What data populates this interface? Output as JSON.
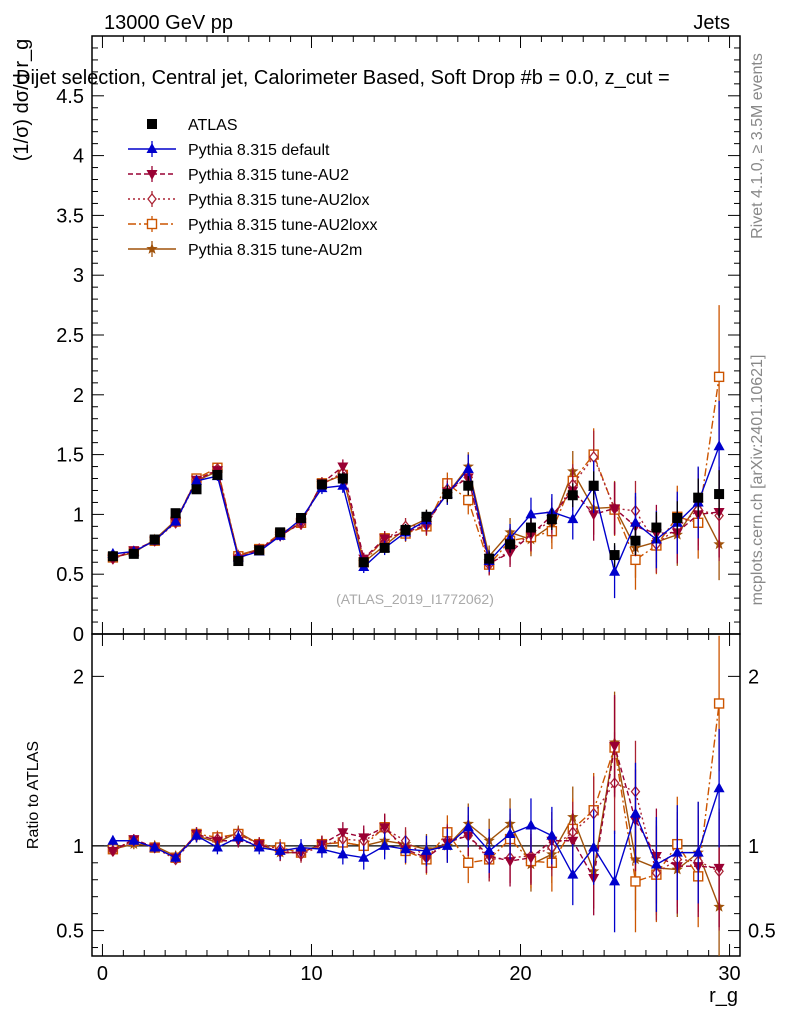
{
  "header": {
    "left": "13000 GeV pp",
    "right": "Jets"
  },
  "side_labels": {
    "rivet": "Rivet 4.1.0, ≥ 3.5M events",
    "mcplots": "mcplots.cern.ch [arXiv:2401.10621]"
  },
  "chart_data": [
    {
      "type": "line",
      "panel": "main",
      "title": "Dijet selection, Central jet, Calorimeter Based, Soft Drop #b = 0.0, z_cut =",
      "xlabel": "r_g",
      "ylabel": "(1/σ) dσ/d r_g",
      "xlim": [
        -0.5,
        30.5
      ],
      "ylim": [
        0,
        5
      ],
      "yticks": [
        "0",
        "0.5",
        "1",
        "1.5",
        "2",
        "2.5",
        "3",
        "3.5",
        "4",
        "4.5"
      ],
      "watermark": "(ATLAS_2019_I1772062)",
      "x": [
        0.5,
        1.5,
        2.5,
        3.5,
        4.5,
        5.5,
        6.5,
        7.5,
        8.5,
        9.5,
        10.5,
        11.5,
        12.5,
        13.5,
        14.5,
        15.5,
        16.5,
        17.5,
        18.5,
        19.5,
        20.5,
        21.5,
        22.5,
        23.5,
        24.5,
        25.5,
        26.5,
        27.5,
        28.5,
        29.5
      ],
      "series": [
        {
          "name": "ATLAS",
          "color": "#000000",
          "marker": "square",
          "line": "none",
          "values": [
            0.65,
            0.67,
            0.79,
            1.01,
            1.21,
            1.33,
            0.61,
            0.7,
            0.85,
            0.97,
            1.25,
            1.3,
            0.6,
            0.72,
            0.87,
            0.98,
            1.17,
            1.24,
            0.63,
            0.75,
            0.89,
            0.96,
            1.16,
            1.24,
            0.66,
            0.78,
            0.89,
            0.97,
            1.14,
            1.17
          ],
          "errors": [
            0.02,
            0.02,
            0.02,
            0.03,
            0.03,
            0.03,
            0.02,
            0.02,
            0.03,
            0.03,
            0.04,
            0.05,
            0.03,
            0.04,
            0.05,
            0.06,
            0.07,
            0.08,
            0.06,
            0.07,
            0.08,
            0.09,
            0.1,
            0.12,
            0.1,
            0.12,
            0.13,
            0.14,
            0.16,
            0.2
          ]
        },
        {
          "name": "Pythia 8.315 default",
          "color": "#0000cc",
          "marker": "triangle-up",
          "line": "solid",
          "values": [
            0.67,
            0.69,
            0.78,
            0.94,
            1.28,
            1.32,
            0.64,
            0.69,
            0.82,
            0.96,
            1.22,
            1.24,
            0.56,
            0.72,
            0.85,
            0.95,
            1.17,
            1.38,
            0.61,
            0.8,
            1.0,
            1.02,
            0.96,
            1.23,
            0.52,
            0.93,
            0.79,
            0.93,
            1.1,
            1.57
          ],
          "errors": [
            0.03,
            0.03,
            0.03,
            0.03,
            0.04,
            0.04,
            0.03,
            0.03,
            0.04,
            0.05,
            0.05,
            0.06,
            0.05,
            0.06,
            0.07,
            0.08,
            0.09,
            0.12,
            0.09,
            0.12,
            0.14,
            0.15,
            0.17,
            0.22,
            0.22,
            0.25,
            0.24,
            0.26,
            0.3,
            0.38
          ]
        },
        {
          "name": "Pythia 8.315 tune-AU2",
          "color": "#990033",
          "marker": "triangle-down",
          "line": "dashed",
          "values": [
            0.63,
            0.7,
            0.78,
            0.94,
            1.29,
            1.37,
            0.63,
            0.71,
            0.82,
            0.93,
            1.26,
            1.4,
            0.63,
            0.8,
            0.85,
            0.91,
            1.19,
            1.31,
            0.59,
            0.68,
            0.83,
            0.99,
            1.2,
            1.0,
            1.05,
            0.9,
            0.84,
            0.85,
            1.0,
            1.02
          ],
          "errors": [
            0.03,
            0.03,
            0.03,
            0.03,
            0.04,
            0.04,
            0.03,
            0.03,
            0.04,
            0.05,
            0.05,
            0.06,
            0.05,
            0.06,
            0.07,
            0.08,
            0.09,
            0.12,
            0.09,
            0.12,
            0.14,
            0.15,
            0.17,
            0.22,
            0.22,
            0.25,
            0.24,
            0.26,
            0.3,
            0.38
          ]
        },
        {
          "name": "Pythia 8.315 tune-AU2lox",
          "color": "#aa2233",
          "marker": "diamond-open",
          "line": "dotted",
          "values": [
            0.63,
            0.69,
            0.78,
            0.93,
            1.28,
            1.38,
            0.65,
            0.71,
            0.83,
            0.92,
            1.25,
            1.35,
            0.62,
            0.79,
            0.9,
            0.91,
            1.21,
            1.31,
            0.58,
            0.7,
            0.84,
            0.95,
            1.25,
            1.48,
            1.05,
            1.03,
            0.75,
            0.89,
            1.04,
            0.99
          ],
          "errors": [
            0.03,
            0.03,
            0.03,
            0.03,
            0.04,
            0.04,
            0.03,
            0.03,
            0.04,
            0.05,
            0.05,
            0.06,
            0.05,
            0.06,
            0.07,
            0.08,
            0.09,
            0.12,
            0.09,
            0.12,
            0.14,
            0.15,
            0.17,
            0.22,
            0.22,
            0.25,
            0.24,
            0.26,
            0.3,
            0.38
          ]
        },
        {
          "name": "Pythia 8.315 tune-AU2loxx",
          "color": "#cc5500",
          "marker": "square-open",
          "line": "dashdot",
          "values": [
            0.64,
            0.69,
            0.78,
            0.94,
            1.3,
            1.39,
            0.65,
            0.71,
            0.84,
            0.93,
            1.26,
            1.33,
            0.6,
            0.8,
            0.84,
            0.9,
            1.26,
            1.12,
            0.58,
            0.78,
            0.81,
            0.86,
            1.28,
            1.5,
            1.04,
            0.62,
            0.74,
            0.98,
            0.93,
            2.15
          ],
          "errors": [
            0.03,
            0.03,
            0.03,
            0.03,
            0.04,
            0.04,
            0.03,
            0.03,
            0.04,
            0.05,
            0.05,
            0.06,
            0.05,
            0.06,
            0.07,
            0.08,
            0.09,
            0.12,
            0.09,
            0.12,
            0.14,
            0.15,
            0.17,
            0.22,
            0.22,
            0.25,
            0.24,
            0.26,
            0.3,
            0.6
          ]
        },
        {
          "name": "Pythia 8.315 tune-AU2m",
          "color": "#a0520a",
          "marker": "star",
          "line": "solid",
          "values": [
            0.64,
            0.68,
            0.79,
            0.95,
            1.28,
            1.36,
            0.66,
            0.71,
            0.82,
            0.93,
            1.26,
            1.33,
            0.6,
            0.74,
            0.88,
            0.96,
            1.17,
            1.4,
            0.65,
            0.85,
            0.79,
            0.91,
            1.36,
            1.05,
            1.06,
            0.72,
            0.77,
            0.83,
            1.09,
            0.75
          ],
          "errors": [
            0.03,
            0.03,
            0.03,
            0.03,
            0.04,
            0.04,
            0.03,
            0.03,
            0.04,
            0.05,
            0.05,
            0.06,
            0.05,
            0.06,
            0.07,
            0.08,
            0.09,
            0.12,
            0.09,
            0.12,
            0.14,
            0.15,
            0.17,
            0.22,
            0.22,
            0.25,
            0.24,
            0.26,
            0.3,
            0.3
          ]
        }
      ]
    },
    {
      "type": "line",
      "panel": "ratio",
      "xlabel": "r_g",
      "ylabel": "Ratio to ATLAS",
      "xlim": [
        -0.5,
        30.5
      ],
      "ylim": [
        0.35,
        2.25
      ],
      "yticks": [
        "0.5",
        "1",
        "2"
      ],
      "xticks": [
        "0",
        "10",
        "20",
        "30"
      ],
      "x": [
        0.5,
        1.5,
        2.5,
        3.5,
        4.5,
        5.5,
        6.5,
        7.5,
        8.5,
        9.5,
        10.5,
        11.5,
        12.5,
        13.5,
        14.5,
        15.5,
        16.5,
        17.5,
        18.5,
        19.5,
        20.5,
        21.5,
        22.5,
        23.5,
        24.5,
        25.5,
        26.5,
        27.5,
        28.5,
        29.5
      ],
      "series": [
        {
          "name": "Pythia 8.315 default",
          "values": [
            1.03,
            1.03,
            0.99,
            0.93,
            1.06,
            0.99,
            1.05,
            0.99,
            0.97,
            0.99,
            0.98,
            0.95,
            0.93,
            1.0,
            0.98,
            0.97,
            1.0,
            1.11,
            0.97,
            1.07,
            1.12,
            1.06,
            0.83,
            0.99,
            0.79,
            1.19,
            0.89,
            0.96,
            0.96,
            1.34
          ],
          "errors": [
            0.03,
            0.03,
            0.03,
            0.03,
            0.04,
            0.04,
            0.04,
            0.04,
            0.05,
            0.05,
            0.05,
            0.06,
            0.07,
            0.08,
            0.08,
            0.09,
            0.1,
            0.12,
            0.13,
            0.15,
            0.16,
            0.17,
            0.18,
            0.22,
            0.3,
            0.3,
            0.28,
            0.28,
            0.3,
            0.35
          ]
        },
        {
          "name": "Pythia 8.315 tune-AU2",
          "values": [
            0.97,
            1.04,
            0.99,
            0.93,
            1.07,
            1.03,
            1.03,
            1.01,
            0.96,
            0.96,
            1.01,
            1.08,
            1.05,
            1.11,
            0.98,
            0.93,
            1.02,
            1.06,
            0.94,
            0.91,
            0.93,
            1.03,
            1.03,
            0.81,
            1.59,
            1.15,
            0.94,
            0.88,
            0.88,
            0.87
          ],
          "errors": [
            0.03,
            0.03,
            0.03,
            0.03,
            0.04,
            0.04,
            0.04,
            0.04,
            0.05,
            0.05,
            0.05,
            0.06,
            0.07,
            0.08,
            0.08,
            0.09,
            0.1,
            0.12,
            0.13,
            0.15,
            0.16,
            0.17,
            0.18,
            0.22,
            0.3,
            0.3,
            0.28,
            0.28,
            0.3,
            0.35
          ]
        },
        {
          "name": "Pythia 8.315 tune-AU2lox",
          "values": [
            0.97,
            1.03,
            0.99,
            0.92,
            1.06,
            1.04,
            1.07,
            1.01,
            0.98,
            0.95,
            1.0,
            1.04,
            1.03,
            1.1,
            1.03,
            0.93,
            1.03,
            1.06,
            0.92,
            0.93,
            0.94,
            0.99,
            1.08,
            1.19,
            1.37,
            1.32,
            0.84,
            0.92,
            0.91,
            0.85
          ],
          "errors": [
            0.03,
            0.03,
            0.03,
            0.03,
            0.04,
            0.04,
            0.04,
            0.04,
            0.05,
            0.05,
            0.05,
            0.06,
            0.07,
            0.08,
            0.08,
            0.09,
            0.1,
            0.12,
            0.13,
            0.15,
            0.16,
            0.17,
            0.18,
            0.22,
            0.3,
            0.3,
            0.28,
            0.28,
            0.3,
            0.35
          ]
        },
        {
          "name": "Pythia 8.315 tune-AU2loxx",
          "values": [
            0.98,
            1.03,
            0.99,
            0.93,
            1.07,
            1.05,
            1.07,
            1.01,
            0.99,
            0.96,
            1.01,
            1.02,
            1.0,
            1.11,
            0.97,
            0.92,
            1.08,
            0.9,
            0.92,
            1.04,
            0.91,
            0.9,
            1.1,
            1.21,
            1.58,
            0.79,
            0.83,
            1.01,
            0.82,
            1.84
          ],
          "errors": [
            0.03,
            0.03,
            0.03,
            0.03,
            0.04,
            0.04,
            0.04,
            0.04,
            0.05,
            0.05,
            0.05,
            0.06,
            0.07,
            0.08,
            0.08,
            0.09,
            0.1,
            0.12,
            0.13,
            0.15,
            0.16,
            0.17,
            0.18,
            0.22,
            0.3,
            0.3,
            0.28,
            0.28,
            0.3,
            0.4
          ]
        },
        {
          "name": "Pythia 8.315 tune-AU2m",
          "values": [
            0.98,
            1.01,
            1.0,
            0.94,
            1.06,
            1.02,
            1.08,
            1.01,
            0.96,
            0.96,
            1.01,
            1.02,
            1.0,
            1.03,
            1.01,
            0.98,
            1.0,
            1.13,
            1.03,
            1.13,
            0.89,
            0.95,
            1.17,
            0.85,
            1.61,
            0.92,
            0.87,
            0.86,
            0.96,
            0.64
          ],
          "errors": [
            0.03,
            0.03,
            0.03,
            0.03,
            0.04,
            0.04,
            0.04,
            0.04,
            0.05,
            0.05,
            0.05,
            0.06,
            0.07,
            0.08,
            0.08,
            0.09,
            0.1,
            0.12,
            0.13,
            0.15,
            0.16,
            0.17,
            0.18,
            0.22,
            0.3,
            0.3,
            0.28,
            0.28,
            0.3,
            0.35
          ]
        }
      ]
    }
  ]
}
